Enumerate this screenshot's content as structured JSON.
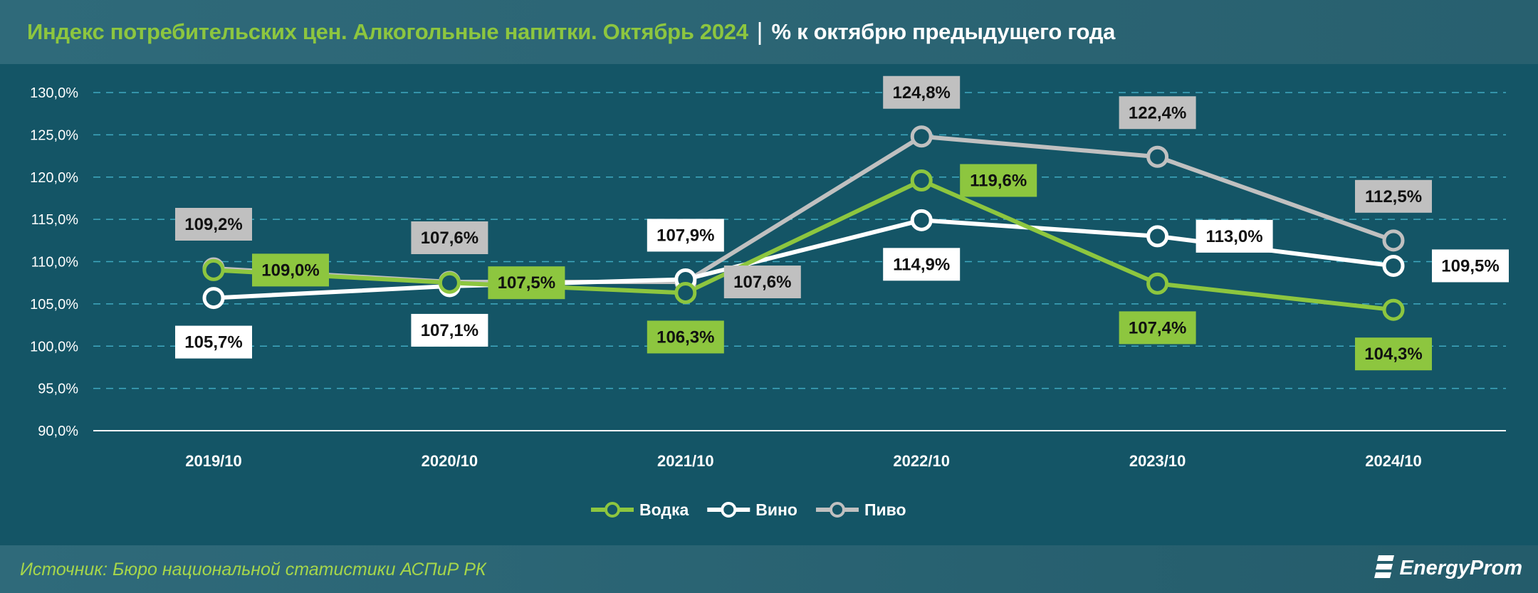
{
  "header": {
    "title": "Индекс потребительских цен. Алкогольные напитки. Октябрь 2024",
    "separator": "|",
    "subtitle": "% к октябрю предыдущего года"
  },
  "footer": {
    "source": "Источник: Бюро национальной статистики АСПиР РК",
    "logo": "EnergyProm"
  },
  "chart_data": {
    "type": "line",
    "categories": [
      "2019/10",
      "2020/10",
      "2021/10",
      "2022/10",
      "2023/10",
      "2024/10"
    ],
    "ylim": [
      90,
      130
    ],
    "yticks": [
      "90,0%",
      "95,0%",
      "100,0%",
      "105,0%",
      "110,0%",
      "115,0%",
      "120,0%",
      "125,0%",
      "130,0%"
    ],
    "grid": true,
    "legend_position": "bottom",
    "series": [
      {
        "name": "Водка",
        "color": "#8dc63f",
        "values": [
          109.0,
          107.5,
          106.3,
          119.6,
          107.4,
          104.3
        ],
        "labels": [
          "109,0%",
          "107,5%",
          "106,3%",
          "119,6%",
          "107,4%",
          "104,3%"
        ]
      },
      {
        "name": "Вино",
        "color": "#ffffff",
        "values": [
          105.7,
          107.1,
          107.9,
          114.9,
          113.0,
          109.5
        ],
        "labels": [
          "105,7%",
          "107,1%",
          "107,9%",
          "114,9%",
          "113,0%",
          "109,5%"
        ]
      },
      {
        "name": "Пиво",
        "color": "#c0c0c0",
        "values": [
          109.2,
          107.6,
          107.6,
          124.8,
          122.4,
          112.5
        ],
        "labels": [
          "109,2%",
          "107,6%",
          "107,6%",
          "124,8%",
          "122,4%",
          "112,5%"
        ]
      }
    ]
  }
}
